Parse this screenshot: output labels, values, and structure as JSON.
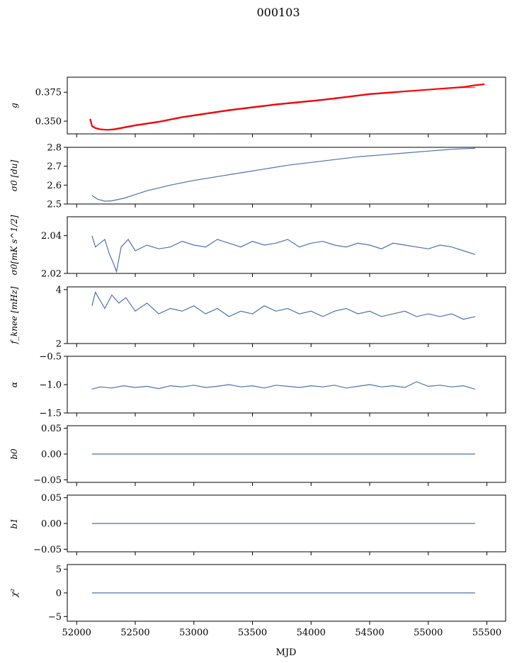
{
  "figure": {
    "title": "000103",
    "xlabel": "MJD",
    "x_ticks": [
      52000,
      52500,
      53000,
      53500,
      54000,
      54500,
      55000,
      55500
    ],
    "x_tick_labels": [
      "52000",
      "52500",
      "53000",
      "53500",
      "54000",
      "54500",
      "55000",
      "55500"
    ]
  },
  "chart_data": [
    {
      "type": "line",
      "ylabel": "g",
      "xlim": [
        51920,
        55660
      ],
      "ylim": [
        0.339,
        0.388
      ],
      "y_ticks": [
        0.35,
        0.375
      ],
      "y_tick_labels": [
        "0.350",
        "0.375"
      ],
      "series": [
        {
          "color": "#4c72b0",
          "x": [
            52130,
            52200,
            52260,
            52320,
            52400,
            52500,
            52700,
            52900,
            53100,
            53300,
            53500,
            53700,
            53900,
            54100,
            54300,
            54500,
            54700,
            54900,
            55100,
            55300,
            55400
          ],
          "y": [
            0.345,
            0.343,
            0.3425,
            0.3425,
            0.344,
            0.346,
            0.349,
            0.353,
            0.356,
            0.359,
            0.3615,
            0.364,
            0.366,
            0.368,
            0.3705,
            0.373,
            0.3745,
            0.3765,
            0.378,
            0.379,
            0.379
          ]
        },
        {
          "color": "#ff0000",
          "x": [
            52115,
            52130,
            52160,
            52200,
            52260,
            52320,
            52400,
            52500,
            52700,
            52900,
            53100,
            53300,
            53500,
            53700,
            53900,
            54100,
            54300,
            54500,
            54700,
            54900,
            55100,
            55300,
            55400,
            55480
          ],
          "y": [
            0.352,
            0.346,
            0.344,
            0.343,
            0.3425,
            0.343,
            0.3445,
            0.3465,
            0.3495,
            0.3535,
            0.3565,
            0.3595,
            0.362,
            0.3645,
            0.3665,
            0.3685,
            0.371,
            0.3735,
            0.375,
            0.3765,
            0.378,
            0.3795,
            0.381,
            0.382
          ]
        }
      ]
    },
    {
      "type": "line",
      "ylabel": "σ0 [du]",
      "xlim": [
        51920,
        55660
      ],
      "ylim": [
        2.5,
        2.8
      ],
      "y_ticks": [
        2.5,
        2.6,
        2.7,
        2.8
      ],
      "y_tick_labels": [
        "2.5",
        "2.6",
        "2.7",
        "2.8"
      ],
      "series": [
        {
          "color": "#4c72b0",
          "x": [
            52130,
            52180,
            52240,
            52300,
            52400,
            52500,
            52600,
            52800,
            53000,
            53200,
            53400,
            53600,
            53800,
            54000,
            54200,
            54400,
            54600,
            54800,
            55000,
            55200,
            55400
          ],
          "y": [
            2.545,
            2.525,
            2.515,
            2.517,
            2.53,
            2.55,
            2.57,
            2.6,
            2.625,
            2.645,
            2.665,
            2.685,
            2.705,
            2.72,
            2.735,
            2.75,
            2.76,
            2.77,
            2.78,
            2.79,
            2.795
          ]
        }
      ]
    },
    {
      "type": "line",
      "ylabel": "σ0[mK s^1/2]",
      "xlim": [
        51920,
        55660
      ],
      "ylim": [
        2.02,
        2.05
      ],
      "y_ticks": [
        2.02,
        2.04
      ],
      "y_tick_labels": [
        "2.02",
        "2.04"
      ],
      "series": [
        {
          "color": "#4c72b0",
          "x": [
            52130,
            52160,
            52200,
            52240,
            52280,
            52310,
            52340,
            52380,
            52440,
            52500,
            52600,
            52700,
            52800,
            52900,
            53000,
            53100,
            53200,
            53300,
            53400,
            53500,
            53600,
            53700,
            53800,
            53900,
            54000,
            54100,
            54200,
            54300,
            54400,
            54500,
            54600,
            54700,
            54800,
            54900,
            55000,
            55100,
            55200,
            55300,
            55400
          ],
          "y": [
            2.04,
            2.034,
            2.036,
            2.038,
            2.03,
            2.026,
            2.021,
            2.034,
            2.038,
            2.032,
            2.035,
            2.033,
            2.034,
            2.037,
            2.035,
            2.034,
            2.038,
            2.036,
            2.034,
            2.037,
            2.035,
            2.036,
            2.038,
            2.034,
            2.036,
            2.037,
            2.035,
            2.034,
            2.036,
            2.035,
            2.033,
            2.036,
            2.035,
            2.034,
            2.033,
            2.035,
            2.034,
            2.032,
            2.03
          ]
        }
      ]
    },
    {
      "type": "line",
      "ylabel": "f_knee [mHz]",
      "xlim": [
        51920,
        55660
      ],
      "ylim": [
        2,
        4.1
      ],
      "y_ticks": [
        2,
        4
      ],
      "y_tick_labels": [
        "2",
        "4"
      ],
      "series": [
        {
          "color": "#4c72b0",
          "x": [
            52130,
            52160,
            52200,
            52240,
            52300,
            52360,
            52420,
            52500,
            52600,
            52700,
            52800,
            52900,
            53000,
            53100,
            53200,
            53300,
            53400,
            53500,
            53600,
            53700,
            53800,
            53900,
            54000,
            54100,
            54200,
            54300,
            54400,
            54500,
            54600,
            54700,
            54800,
            54900,
            55000,
            55100,
            55200,
            55300,
            55400
          ],
          "y": [
            3.4,
            3.9,
            3.6,
            3.3,
            3.8,
            3.5,
            3.7,
            3.2,
            3.5,
            3.1,
            3.3,
            3.2,
            3.4,
            3.1,
            3.3,
            3.0,
            3.2,
            3.1,
            3.4,
            3.2,
            3.3,
            3.1,
            3.2,
            3.0,
            3.2,
            3.3,
            3.1,
            3.2,
            3.0,
            3.1,
            3.2,
            3.0,
            3.1,
            3.0,
            3.1,
            2.9,
            3.0
          ]
        }
      ]
    },
    {
      "type": "line",
      "ylabel": "α",
      "xlim": [
        51920,
        55660
      ],
      "ylim": [
        -1.5,
        -0.5
      ],
      "y_ticks": [
        -1.5,
        -1.0,
        -0.5
      ],
      "y_tick_labels": [
        "−1.5",
        "−1.0",
        "−0.5"
      ],
      "series": [
        {
          "color": "#4c72b0",
          "x": [
            52130,
            52200,
            52300,
            52400,
            52500,
            52600,
            52700,
            52800,
            52900,
            53000,
            53100,
            53200,
            53300,
            53400,
            53500,
            53600,
            53700,
            53800,
            53900,
            54000,
            54100,
            54200,
            54300,
            54400,
            54500,
            54600,
            54700,
            54800,
            54900,
            55000,
            55100,
            55200,
            55300,
            55400
          ],
          "y": [
            -1.08,
            -1.04,
            -1.06,
            -1.02,
            -1.05,
            -1.03,
            -1.07,
            -1.02,
            -1.04,
            -1.01,
            -1.05,
            -1.03,
            -1.0,
            -1.04,
            -1.02,
            -1.06,
            -1.01,
            -1.03,
            -1.05,
            -1.02,
            -1.04,
            -1.01,
            -1.06,
            -1.03,
            -1.0,
            -1.04,
            -1.02,
            -1.05,
            -0.95,
            -1.03,
            -1.01,
            -1.04,
            -1.02,
            -1.08
          ]
        }
      ]
    },
    {
      "type": "line",
      "ylabel": "b0",
      "xlim": [
        51920,
        55660
      ],
      "ylim": [
        -0.055,
        0.055
      ],
      "y_ticks": [
        -0.05,
        0.0,
        0.05
      ],
      "y_tick_labels": [
        "−0.05",
        "0.00",
        "0.05"
      ],
      "series": [
        {
          "color": "#4c72b0",
          "x": [
            52130,
            55400
          ],
          "y": [
            0,
            0
          ]
        }
      ]
    },
    {
      "type": "line",
      "ylabel": "b1",
      "xlim": [
        51920,
        55660
      ],
      "ylim": [
        -0.055,
        0.055
      ],
      "y_ticks": [
        -0.05,
        0.0,
        0.05
      ],
      "y_tick_labels": [
        "−0.05",
        "0.00",
        "0.05"
      ],
      "series": [
        {
          "color": "#4c72b0",
          "x": [
            52130,
            55400
          ],
          "y": [
            0,
            0
          ]
        }
      ]
    },
    {
      "type": "line",
      "ylabel": "χ²",
      "xlim": [
        51920,
        55660
      ],
      "ylim": [
        -6,
        6
      ],
      "y_ticks": [
        -5,
        0,
        5
      ],
      "y_tick_labels": [
        "−5",
        "0",
        "5"
      ],
      "series": [
        {
          "color": "#4c72b0",
          "x": [
            52130,
            55400
          ],
          "y": [
            0,
            0
          ]
        }
      ]
    }
  ]
}
